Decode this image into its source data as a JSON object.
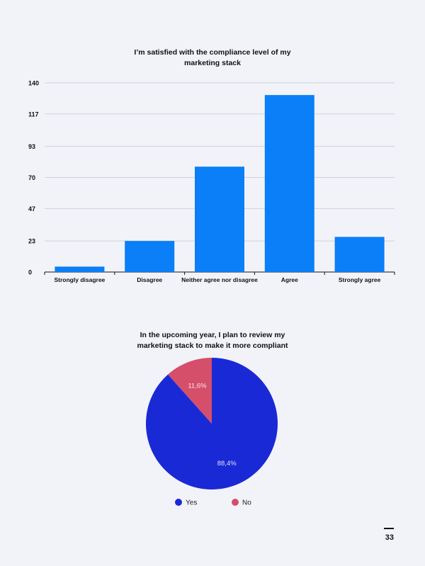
{
  "chart_data": [
    {
      "type": "bar",
      "title_lines": [
        "I’m satisfied with the compliance level of my",
        "marketing stack"
      ],
      "categories": [
        "Strongly disagree",
        "Disagree",
        "Neither agree nor disagree",
        "Agree",
        "Strongly agree"
      ],
      "values": [
        4,
        23,
        78,
        131,
        26
      ],
      "yticks": [
        "0",
        "23",
        "47",
        "70",
        "93",
        "117",
        "140"
      ],
      "ylim": [
        0,
        140
      ],
      "grid": true,
      "color": "#0a7ff7"
    },
    {
      "type": "pie",
      "title_lines": [
        "In the upcoming year, I plan to review my",
        "marketing stack to make it more compliant"
      ],
      "slices": [
        {
          "label": "Yes",
          "value": 88.4,
          "display": "88,4%",
          "color": "#1a29d6"
        },
        {
          "label": "No",
          "value": 11.6,
          "display": "11,6%",
          "color": "#d54f6a"
        }
      ],
      "legend_position": "bottom"
    }
  ],
  "page": {
    "number": "33"
  }
}
